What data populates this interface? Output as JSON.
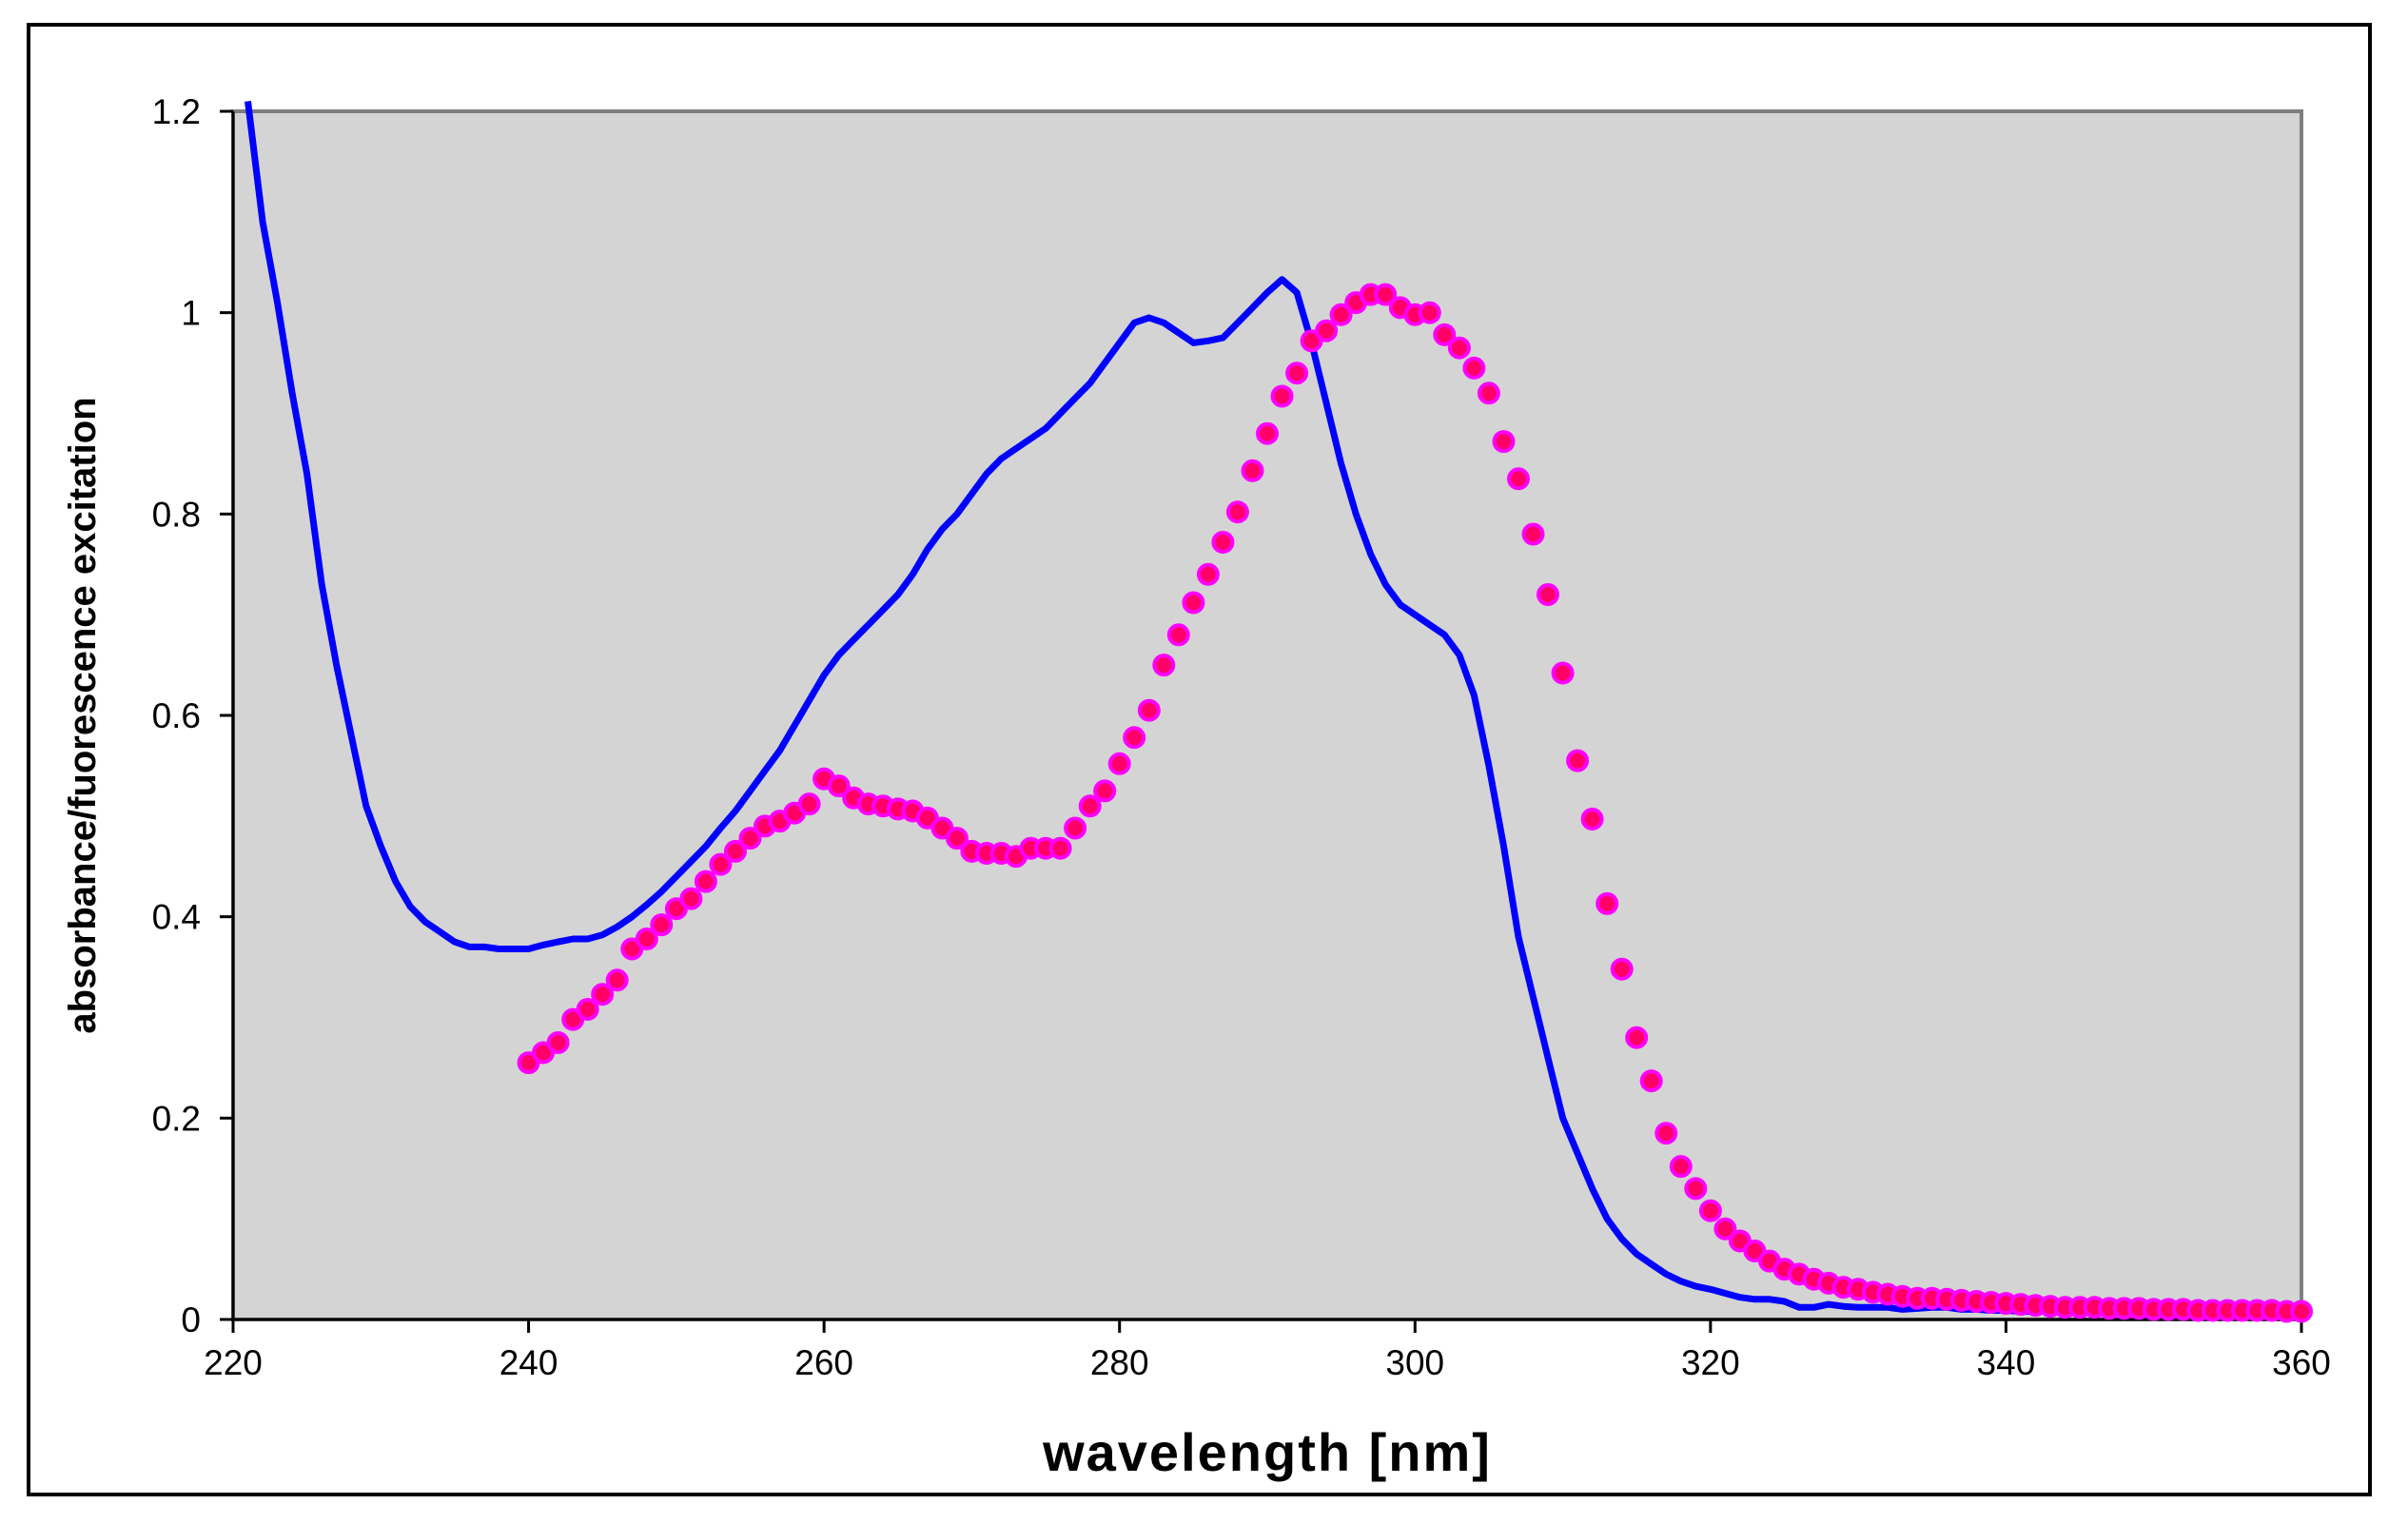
{
  "chart_data": {
    "type": "line",
    "title": "",
    "xlabel": "wavelength [nm]",
    "ylabel": "absorbance/fuorescence excitation",
    "xlim": [
      220,
      360
    ],
    "ylim": [
      0,
      1.2
    ],
    "x_ticks": [
      "220",
      "240",
      "260",
      "280",
      "300",
      "320",
      "340",
      "360"
    ],
    "y_ticks": [
      "0",
      "0.2",
      "0.4",
      "0.6",
      "0.8",
      "1",
      "1.2"
    ],
    "grid": false,
    "legend": "none",
    "plot_background": "#d4d4d4",
    "series": [
      {
        "style": "line",
        "color": "#0000ff",
        "x": [
          221,
          222,
          223,
          224,
          225,
          226,
          227,
          228,
          229,
          230,
          231,
          232,
          233,
          234,
          235,
          236,
          237,
          238,
          239,
          240,
          241,
          242,
          243,
          244,
          245,
          246,
          247,
          248,
          249,
          250,
          251,
          252,
          253,
          254,
          255,
          256,
          257,
          258,
          259,
          260,
          261,
          262,
          263,
          264,
          265,
          266,
          267,
          268,
          269,
          270,
          271,
          272,
          273,
          274,
          275,
          276,
          277,
          278,
          279,
          280,
          281,
          282,
          283,
          284,
          285,
          286,
          287,
          288,
          289,
          290,
          291,
          292,
          293,
          294,
          295,
          296,
          297,
          298,
          299,
          300,
          301,
          302,
          303,
          304,
          305,
          306,
          307,
          308,
          309,
          310,
          311,
          312,
          313,
          314,
          315,
          316,
          317,
          318,
          319,
          320,
          321,
          322,
          323,
          324,
          325,
          326,
          327,
          328,
          329,
          330,
          331,
          332,
          333,
          334,
          335,
          336,
          337,
          338,
          339,
          340,
          341,
          342,
          343,
          344,
          345,
          346,
          347,
          348,
          349,
          350,
          351,
          352,
          353,
          354,
          355,
          356,
          357,
          358,
          359,
          360
        ],
        "y": [
          1.21,
          1.09,
          1.01,
          0.92,
          0.84,
          0.73,
          0.65,
          0.58,
          0.51,
          0.47,
          0.435,
          0.41,
          0.395,
          0.385,
          0.375,
          0.37,
          0.37,
          0.368,
          0.368,
          0.368,
          0.372,
          0.375,
          0.378,
          0.378,
          0.382,
          0.39,
          0.4,
          0.412,
          0.425,
          0.44,
          0.455,
          0.47,
          0.488,
          0.505,
          0.525,
          0.545,
          0.565,
          0.59,
          0.615,
          0.64,
          0.66,
          0.675,
          0.69,
          0.705,
          0.72,
          0.74,
          0.765,
          0.785,
          0.8,
          0.82,
          0.84,
          0.855,
          0.865,
          0.875,
          0.885,
          0.9,
          0.915,
          0.93,
          0.95,
          0.97,
          0.99,
          0.995,
          0.99,
          0.98,
          0.97,
          0.972,
          0.975,
          0.99,
          1.005,
          1.02,
          1.033,
          1.02,
          0.97,
          0.91,
          0.85,
          0.8,
          0.76,
          0.73,
          0.71,
          0.7,
          0.69,
          0.68,
          0.66,
          0.62,
          0.55,
          0.47,
          0.38,
          0.32,
          0.26,
          0.2,
          0.165,
          0.13,
          0.1,
          0.08,
          0.065,
          0.055,
          0.045,
          0.038,
          0.033,
          0.03,
          0.026,
          0.022,
          0.02,
          0.02,
          0.018,
          0.012,
          0.012,
          0.015,
          0.013,
          0.012,
          0.012,
          0.012,
          0.01,
          0.011,
          0.012,
          0.012,
          0.01,
          0.01,
          0.009,
          0.009,
          0.008,
          0.008,
          0.008,
          0.007,
          0.007,
          0.007,
          0.006,
          0.006,
          0.006,
          0.005,
          0.005,
          0.005,
          0.005,
          0.005,
          0.005,
          0.004,
          0.004,
          0.004,
          0.004,
          0.004
        ]
      },
      {
        "style": "markers",
        "color": "#ff0066",
        "edge_color": "#ff00ff",
        "x": [
          240,
          241,
          242,
          243,
          244,
          245,
          246,
          247,
          248,
          249,
          250,
          251,
          252,
          253,
          254,
          255,
          256,
          257,
          258,
          259,
          260,
          261,
          262,
          263,
          264,
          265,
          266,
          267,
          268,
          269,
          270,
          271,
          272,
          273,
          274,
          275,
          276,
          277,
          278,
          279,
          280,
          281,
          282,
          283,
          284,
          285,
          286,
          287,
          288,
          289,
          290,
          291,
          292,
          293,
          294,
          295,
          296,
          297,
          298,
          299,
          300,
          301,
          302,
          303,
          304,
          305,
          306,
          307,
          308,
          309,
          310,
          311,
          312,
          313,
          314,
          315,
          316,
          317,
          318,
          319,
          320,
          321,
          322,
          323,
          324,
          325,
          326,
          327,
          328,
          329,
          330,
          331,
          332,
          333,
          334,
          335,
          336,
          337,
          338,
          339,
          340,
          341,
          342,
          343,
          344,
          345,
          346,
          347,
          348,
          349,
          350,
          351,
          352,
          353,
          354,
          355,
          356,
          357,
          358,
          359,
          360
        ],
        "y": [
          0.255,
          0.265,
          0.275,
          0.298,
          0.308,
          0.323,
          0.337,
          0.368,
          0.378,
          0.392,
          0.408,
          0.418,
          0.435,
          0.452,
          0.465,
          0.478,
          0.49,
          0.495,
          0.503,
          0.512,
          0.537,
          0.53,
          0.518,
          0.512,
          0.51,
          0.507,
          0.505,
          0.498,
          0.488,
          0.478,
          0.465,
          0.463,
          0.463,
          0.46,
          0.468,
          0.468,
          0.468,
          0.488,
          0.51,
          0.525,
          0.552,
          0.578,
          0.605,
          0.65,
          0.68,
          0.712,
          0.74,
          0.772,
          0.802,
          0.843,
          0.88,
          0.917,
          0.94,
          0.972,
          0.982,
          0.998,
          1.01,
          1.018,
          1.018,
          1.005,
          0.998,
          1.0,
          0.978,
          0.965,
          0.945,
          0.92,
          0.872,
          0.835,
          0.78,
          0.72,
          0.642,
          0.555,
          0.497,
          0.413,
          0.348,
          0.28,
          0.237,
          0.185,
          0.152,
          0.13,
          0.108,
          0.09,
          0.078,
          0.068,
          0.058,
          0.05,
          0.045,
          0.04,
          0.036,
          0.032,
          0.03,
          0.027,
          0.025,
          0.023,
          0.021,
          0.021,
          0.02,
          0.019,
          0.018,
          0.017,
          0.016,
          0.015,
          0.014,
          0.013,
          0.012,
          0.012,
          0.012,
          0.011,
          0.011,
          0.011,
          0.01,
          0.01,
          0.01,
          0.009,
          0.009,
          0.009,
          0.009,
          0.009,
          0.009,
          0.008,
          0.008
        ]
      }
    ]
  }
}
